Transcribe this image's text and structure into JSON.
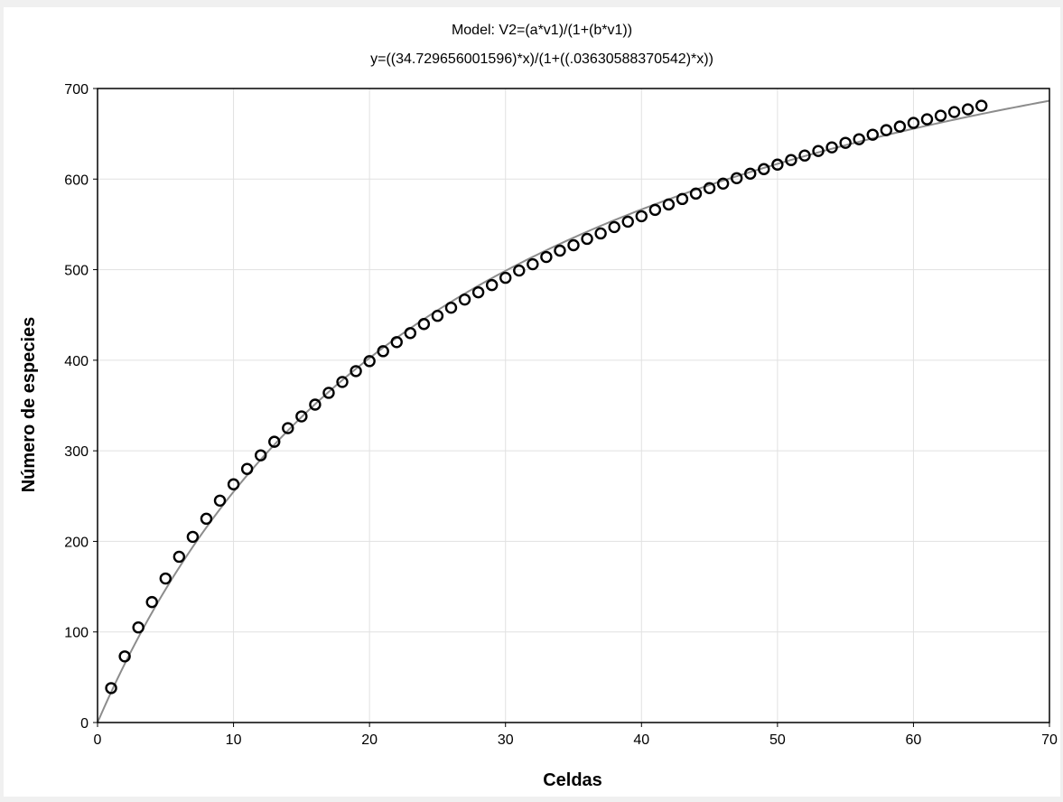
{
  "chart_data": {
    "type": "scatter",
    "title": "Model: V2=(a*v1)/(1+(b*v1))",
    "subtitle": "y=((34.729656001596)*x)/(1+((.03630588370542)*x))",
    "xlabel": "Celdas",
    "ylabel": "Número de especies",
    "xlim": [
      0,
      70
    ],
    "ylim": [
      0,
      700
    ],
    "xticks": [
      0,
      10,
      20,
      30,
      40,
      50,
      60,
      70
    ],
    "yticks": [
      0,
      100,
      200,
      300,
      400,
      500,
      600,
      700
    ],
    "grid": true,
    "model": {
      "a": 34.729656001596,
      "b": 0.03630588370542
    },
    "colors": {
      "fit_line": "#8c8c8c",
      "points": "#000000",
      "grid": "#e1e1e1",
      "frame": "#000000"
    },
    "series": [
      {
        "values": [
          [
            1,
            38
          ],
          [
            2,
            73
          ],
          [
            3,
            105
          ],
          [
            4,
            133
          ],
          [
            5,
            159
          ],
          [
            6,
            183
          ],
          [
            7,
            205
          ],
          [
            8,
            225
          ],
          [
            9,
            245
          ],
          [
            10,
            263
          ],
          [
            11,
            280
          ],
          [
            12,
            295
          ],
          [
            13,
            310
          ],
          [
            14,
            325
          ],
          [
            15,
            338
          ],
          [
            16,
            351
          ],
          [
            17,
            364
          ],
          [
            18,
            376
          ],
          [
            19,
            388
          ],
          [
            20,
            399
          ],
          [
            21,
            410
          ],
          [
            22,
            420
          ],
          [
            23,
            430
          ],
          [
            24,
            440
          ],
          [
            25,
            449
          ],
          [
            26,
            458
          ],
          [
            27,
            467
          ],
          [
            28,
            475
          ],
          [
            29,
            483
          ],
          [
            30,
            491
          ],
          [
            31,
            499
          ],
          [
            32,
            506
          ],
          [
            33,
            514
          ],
          [
            34,
            521
          ],
          [
            35,
            527
          ],
          [
            36,
            534
          ],
          [
            37,
            540
          ],
          [
            38,
            547
          ],
          [
            39,
            553
          ],
          [
            40,
            559
          ],
          [
            41,
            566
          ],
          [
            42,
            572
          ],
          [
            43,
            578
          ],
          [
            44,
            584
          ],
          [
            45,
            590
          ],
          [
            46,
            595
          ],
          [
            47,
            601
          ],
          [
            48,
            606
          ],
          [
            49,
            611
          ],
          [
            50,
            616
          ],
          [
            51,
            621
          ],
          [
            52,
            626
          ],
          [
            53,
            631
          ],
          [
            54,
            635
          ],
          [
            55,
            640
          ],
          [
            56,
            644
          ],
          [
            57,
            649
          ],
          [
            58,
            654
          ],
          [
            59,
            658
          ],
          [
            60,
            662
          ],
          [
            61,
            666
          ],
          [
            62,
            670
          ],
          [
            63,
            674
          ],
          [
            64,
            677
          ],
          [
            65,
            681
          ]
        ]
      }
    ]
  }
}
